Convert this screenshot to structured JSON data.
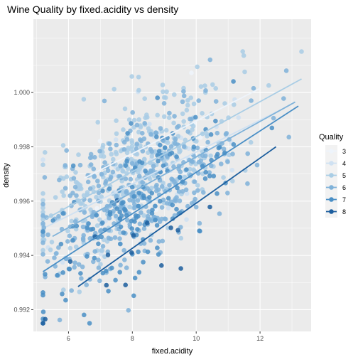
{
  "chart_data": {
    "type": "scatter",
    "title": "Wine Quality by fixed.acidity vs density",
    "xlabel": "fixed.acidity",
    "ylabel": "density",
    "xlim": [
      4.9,
      13.6
    ],
    "ylim": [
      0.9912,
      1.0027
    ],
    "x_ticks": [
      6,
      8,
      10,
      12
    ],
    "y_ticks": [
      0.992,
      0.994,
      0.996,
      0.998,
      1.0
    ],
    "y_tick_labels": [
      "0.992",
      "0.994",
      "0.996",
      "0.998",
      "1.000"
    ],
    "grid": true,
    "legend": {
      "title": "Quality",
      "position": "right"
    },
    "series": [
      {
        "name": "3",
        "color": "#eef4fb",
        "fit": {
          "x": [
            6.5,
            12.0
          ],
          "y": [
            0.99685,
            1.00015
          ]
        },
        "n_points": 10,
        "center_density": 0.997
      },
      {
        "name": "4",
        "color": "#cfe1f2",
        "fit": {
          "x": [
            5.3,
            12.8
          ],
          "y": [
            0.99505,
            0.99945
          ]
        },
        "n_points": 50,
        "center_density": 0.9965
      },
      {
        "name": "5",
        "color": "#a9cde5",
        "fit": {
          "x": [
            5.3,
            13.3
          ],
          "y": [
            0.99535,
            1.0005
          ]
        },
        "n_points": 380,
        "center_density": 0.9972
      },
      {
        "name": "6",
        "color": "#7fb2d9",
        "fit": {
          "x": [
            5.5,
            13.1
          ],
          "y": [
            0.9947,
            0.99965
          ]
        },
        "n_points": 360,
        "center_density": 0.9967
      },
      {
        "name": "7",
        "color": "#4a8fc6",
        "fit": {
          "x": [
            5.2,
            13.2
          ],
          "y": [
            0.9934,
            0.9995
          ]
        },
        "n_points": 160,
        "center_density": 0.9959
      },
      {
        "name": "8",
        "color": "#1c5e9e",
        "fit": {
          "x": [
            6.3,
            12.5
          ],
          "y": [
            0.99285,
            0.998
          ]
        },
        "n_points": 16,
        "center_density": 0.995
      }
    ]
  }
}
